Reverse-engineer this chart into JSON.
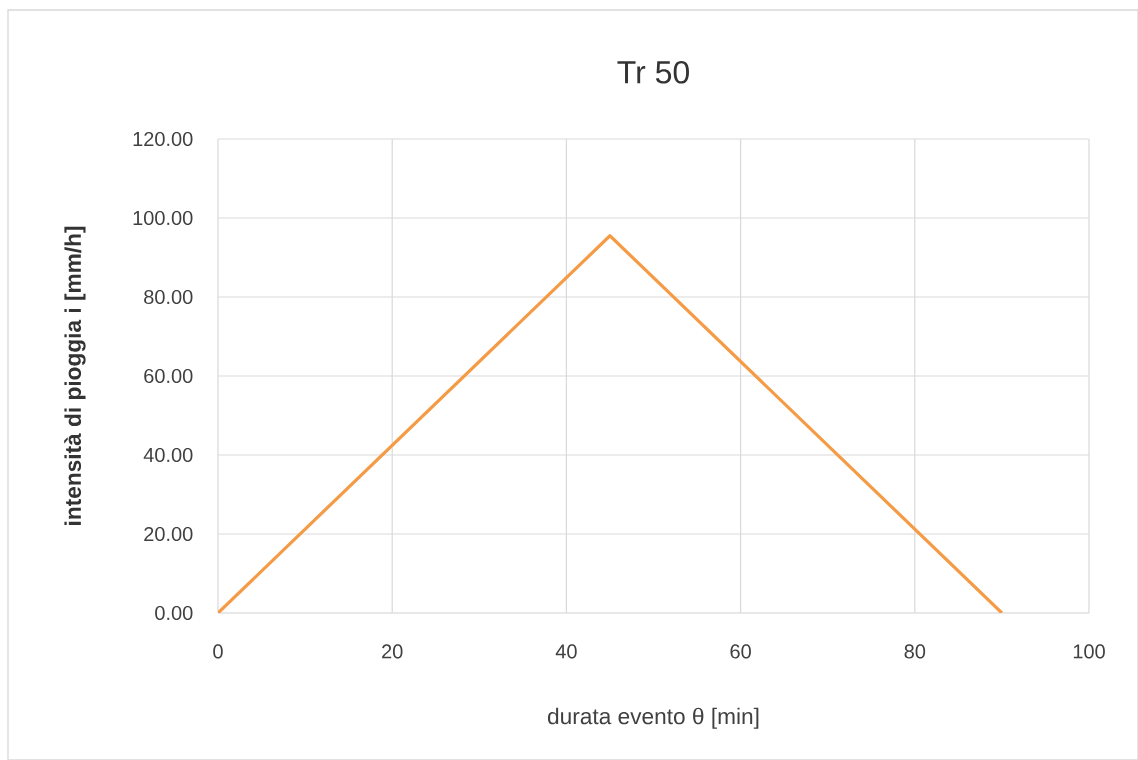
{
  "chart_data": {
    "type": "line",
    "title": "Tr 50",
    "xlabel": "durata evento θ [min]",
    "ylabel": "intensità di pioggia i [mm/h]",
    "x": [
      0,
      45,
      90
    ],
    "series": [
      {
        "color": "#f59a45",
        "values": [
          0,
          95.5,
          0
        ]
      }
    ],
    "xlim": [
      0,
      100
    ],
    "xticks": [
      0,
      20,
      40,
      60,
      80,
      100
    ],
    "ylim": [
      0,
      120
    ],
    "yticks": [
      {
        "value": 0,
        "label": "0.00"
      },
      {
        "value": 20,
        "label": "20.00"
      },
      {
        "value": 40,
        "label": "40.00"
      },
      {
        "value": 60,
        "label": "60.00"
      },
      {
        "value": 80,
        "label": "80.00"
      },
      {
        "value": 100,
        "label": "100.00"
      },
      {
        "value": 120,
        "label": "120.00"
      }
    ],
    "grid": true,
    "marker": "none",
    "line_style": "solid"
  }
}
